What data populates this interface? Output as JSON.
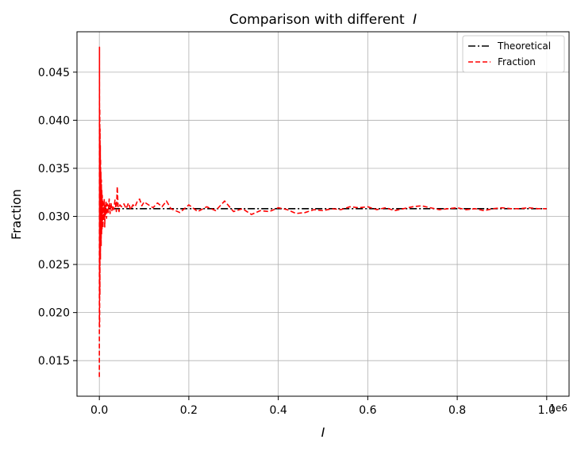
{
  "chart_data": {
    "type": "line",
    "title_prefix": "Comparison with different",
    "title_symbol": "I",
    "xlabel": "I",
    "ylabel": "Fraction",
    "x_exponent_label": "1e6",
    "xlim": [
      -0.05,
      1.05
    ],
    "ylim": [
      0.0113,
      0.0492
    ],
    "grid": true,
    "legend_position": "top-right",
    "x_ticks": [
      0.0,
      0.2,
      0.4,
      0.6,
      0.8,
      1.0
    ],
    "x_tick_labels": [
      "0.0",
      "0.2",
      "0.4",
      "0.6",
      "0.8",
      "1.0"
    ],
    "y_ticks": [
      0.015,
      0.02,
      0.025,
      0.03,
      0.035,
      0.04,
      0.045
    ],
    "y_tick_labels": [
      "0.015",
      "0.020",
      "0.025",
      "0.030",
      "0.035",
      "0.040",
      "0.045"
    ],
    "series": [
      {
        "name": "Theoretical",
        "color": "#000000",
        "style": "dashdot",
        "x": [
          0.0,
          1.0
        ],
        "y": [
          0.0308,
          0.0308
        ]
      },
      {
        "name": "Fraction",
        "color": "#ff0000",
        "style": "dashed",
        "x": [
          0.0,
          0.0003,
          0.0006,
          0.0009,
          0.0012,
          0.0015,
          0.0018,
          0.0021,
          0.0024,
          0.0027,
          0.003,
          0.0035,
          0.004,
          0.0045,
          0.005,
          0.0055,
          0.006,
          0.0065,
          0.007,
          0.0075,
          0.008,
          0.009,
          0.01,
          0.011,
          0.012,
          0.013,
          0.014,
          0.015,
          0.016,
          0.018,
          0.02,
          0.022,
          0.024,
          0.026,
          0.028,
          0.03,
          0.032,
          0.035,
          0.038,
          0.04,
          0.042,
          0.044,
          0.046,
          0.05,
          0.055,
          0.06,
          0.065,
          0.07,
          0.075,
          0.08,
          0.085,
          0.09,
          0.095,
          0.1,
          0.11,
          0.12,
          0.13,
          0.14,
          0.15,
          0.16,
          0.18,
          0.2,
          0.22,
          0.24,
          0.26,
          0.28,
          0.3,
          0.32,
          0.34,
          0.36,
          0.38,
          0.4,
          0.42,
          0.44,
          0.46,
          0.48,
          0.5,
          0.52,
          0.54,
          0.56,
          0.58,
          0.6,
          0.62,
          0.64,
          0.66,
          0.68,
          0.7,
          0.72,
          0.74,
          0.76,
          0.78,
          0.8,
          0.82,
          0.84,
          0.86,
          0.88,
          0.9,
          0.92,
          0.94,
          0.96,
          0.98,
          1.0
        ],
        "y": [
          0.0133,
          0.0476,
          0.0185,
          0.0412,
          0.0218,
          0.0391,
          0.0262,
          0.0374,
          0.0255,
          0.036,
          0.0272,
          0.0346,
          0.0269,
          0.0338,
          0.0281,
          0.0327,
          0.0287,
          0.0322,
          0.0291,
          0.0317,
          0.0288,
          0.0314,
          0.0296,
          0.0318,
          0.0289,
          0.0312,
          0.0302,
          0.0316,
          0.0298,
          0.0313,
          0.0304,
          0.0318,
          0.0303,
          0.0314,
          0.0306,
          0.0311,
          0.0307,
          0.0317,
          0.0305,
          0.0331,
          0.0309,
          0.0305,
          0.0312,
          0.031,
          0.0313,
          0.0308,
          0.0314,
          0.0307,
          0.0312,
          0.031,
          0.0316,
          0.0318,
          0.0311,
          0.0315,
          0.0312,
          0.0309,
          0.0314,
          0.031,
          0.0316,
          0.0308,
          0.0304,
          0.0312,
          0.0305,
          0.031,
          0.0306,
          0.0316,
          0.0305,
          0.0308,
          0.0302,
          0.0306,
          0.0305,
          0.0309,
          0.0307,
          0.0303,
          0.0304,
          0.0307,
          0.0306,
          0.0308,
          0.0307,
          0.031,
          0.0309,
          0.031,
          0.0307,
          0.0309,
          0.0306,
          0.0308,
          0.031,
          0.0311,
          0.0309,
          0.0307,
          0.0308,
          0.0309,
          0.0307,
          0.0308,
          0.0306,
          0.0308,
          0.0309,
          0.0308,
          0.0308,
          0.0309,
          0.0308,
          0.0308
        ]
      }
    ]
  }
}
